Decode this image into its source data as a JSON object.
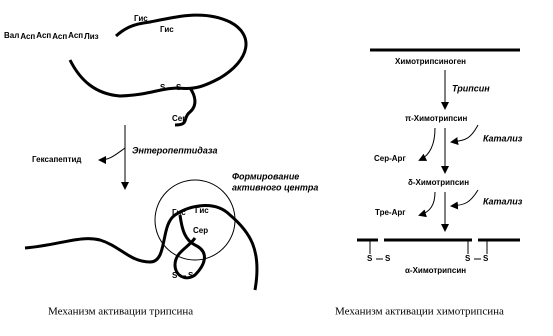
{
  "trypsin": {
    "peptide": [
      "Вал",
      "Асп",
      "Асп",
      "Асп",
      "Асп",
      "Лиз"
    ],
    "top_his_1": "Гис",
    "top_his_2": "Гис",
    "top_s_1": "S",
    "top_s_2": "S",
    "top_ser": "Сер",
    "released": "Гексапептид",
    "enzyme": "Энтеропептидаза",
    "active_center": [
      "Формирование",
      "активного центра"
    ],
    "bottom_his_1": "Гис",
    "bottom_his_2": "Гис",
    "bottom_ser": "Сер",
    "bottom_s_1": "S",
    "bottom_s_2": "S",
    "caption": "Механизм активации трипсина"
  },
  "chymotrypsin": {
    "zymogen": "Химотрипсиноген",
    "enzyme": "Трипсин",
    "pi_form": "π-Химотрипсин",
    "catalysis_1": "Катализ",
    "released_1": "Сер-Арг",
    "delta_form": "δ-Химотрипсин",
    "catalysis_2": "Катализ",
    "released_2": "Тре-Арг",
    "bridges": [
      "S",
      "S",
      "S",
      "S"
    ],
    "alpha_form": "α-Химотрипсин",
    "caption": "Механизм активации химотрипсина"
  }
}
